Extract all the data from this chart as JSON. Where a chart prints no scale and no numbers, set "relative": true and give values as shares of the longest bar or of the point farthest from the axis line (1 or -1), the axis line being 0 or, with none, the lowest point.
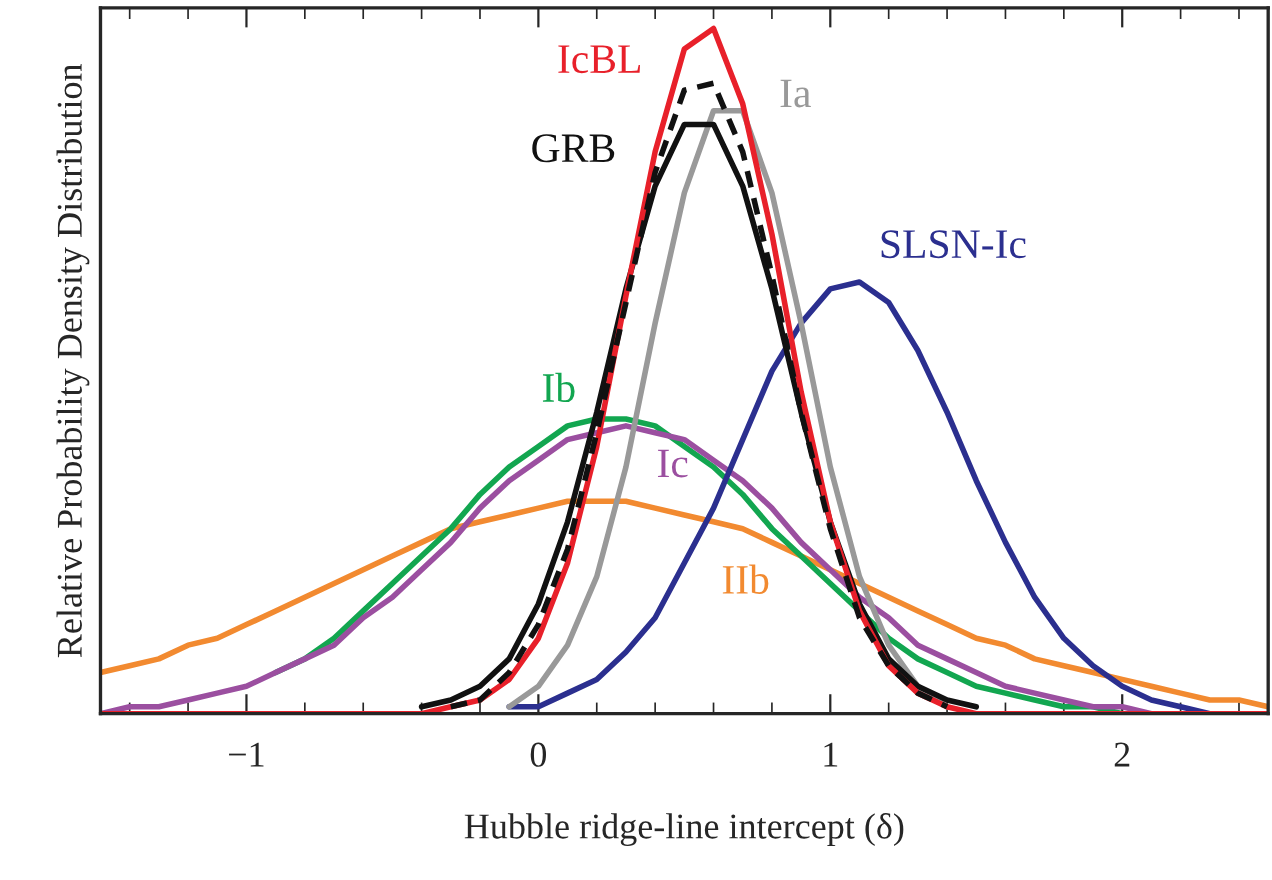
{
  "chart_data": {
    "type": "line",
    "relative": true,
    "xlabel": "Hubble ridge-line intercept (δ)",
    "ylabel": "Relative Probability Density Distribution",
    "xlim": [
      -1.5,
      2.5
    ],
    "xticks": [
      {
        "value": -1,
        "label": "−1"
      },
      0,
      1,
      2
    ],
    "grid": false,
    "legend": false,
    "marker": "none",
    "x": [
      -1.5,
      -1.4,
      -1.3,
      -1.2,
      -1.1,
      -1.0,
      -0.9,
      -0.8,
      -0.7,
      -0.6,
      -0.5,
      -0.4,
      -0.3,
      -0.2,
      -0.1,
      0.0,
      0.1,
      0.2,
      0.3,
      0.4,
      0.5,
      0.6,
      0.7,
      0.8,
      0.9,
      1.0,
      1.1,
      1.2,
      1.3,
      1.4,
      1.5,
      1.6,
      1.7,
      1.8,
      1.9,
      2.0,
      2.1,
      2.2,
      2.3,
      2.4,
      2.5
    ],
    "series": [
      {
        "name": "IIb",
        "color": "#f28a30",
        "line_style": "solid",
        "values": [
          0.06,
          0.07,
          0.08,
          0.1,
          0.11,
          0.13,
          0.15,
          0.17,
          0.19,
          0.21,
          0.23,
          0.25,
          0.27,
          0.28,
          0.29,
          0.3,
          0.31,
          0.31,
          0.31,
          0.3,
          0.29,
          0.28,
          0.27,
          0.25,
          0.23,
          0.21,
          0.19,
          0.17,
          0.15,
          0.13,
          0.11,
          0.1,
          0.08,
          0.07,
          0.06,
          0.05,
          0.04,
          0.03,
          0.02,
          0.02,
          0.01
        ]
      },
      {
        "name": "Ib",
        "color": "#12a650",
        "line_style": "solid",
        "values": [
          null,
          null,
          null,
          null,
          null,
          null,
          0.06,
          0.08,
          0.11,
          0.15,
          0.19,
          0.23,
          0.27,
          0.32,
          0.36,
          0.39,
          0.42,
          0.43,
          0.43,
          0.42,
          0.39,
          0.36,
          0.32,
          0.27,
          0.23,
          0.19,
          0.15,
          0.11,
          0.08,
          0.06,
          0.04,
          0.03,
          0.02,
          0.01,
          0.01,
          0,
          0,
          null,
          null,
          null,
          null
        ]
      },
      {
        "name": "Ic",
        "color": "#9b4fa0",
        "line_style": "solid",
        "values": [
          0,
          0.01,
          0.01,
          0.02,
          0.03,
          0.04,
          0.06,
          0.08,
          0.1,
          0.14,
          0.17,
          0.21,
          0.25,
          0.3,
          0.34,
          0.37,
          0.4,
          0.41,
          0.42,
          0.41,
          0.4,
          0.37,
          0.34,
          0.3,
          0.25,
          0.21,
          0.17,
          0.14,
          0.1,
          0.08,
          0.06,
          0.04,
          0.03,
          0.02,
          0.01,
          0.01,
          0,
          0,
          0,
          0,
          0
        ]
      },
      {
        "name": "SLSN-Ic",
        "color": "#2b2f8f",
        "line_style": "solid",
        "values": [
          null,
          null,
          null,
          null,
          null,
          null,
          null,
          null,
          null,
          null,
          null,
          null,
          null,
          null,
          0.01,
          0.01,
          0.03,
          0.05,
          0.09,
          0.14,
          0.22,
          0.3,
          0.4,
          0.5,
          0.57,
          0.62,
          0.63,
          0.6,
          0.53,
          0.44,
          0.34,
          0.25,
          0.17,
          0.11,
          0.07,
          0.04,
          0.02,
          0.01,
          0,
          null,
          null
        ]
      },
      {
        "name": "Ia",
        "color": "#999999",
        "line_style": "solid",
        "values": [
          null,
          null,
          null,
          null,
          null,
          null,
          null,
          null,
          null,
          null,
          null,
          null,
          null,
          null,
          0.01,
          0.04,
          0.1,
          0.2,
          0.36,
          0.57,
          0.76,
          0.88,
          0.88,
          0.76,
          0.57,
          0.36,
          0.2,
          0.1,
          0.04,
          0.01,
          null,
          null,
          null,
          null,
          null,
          null,
          null,
          null,
          null,
          null,
          null
        ]
      },
      {
        "name": "GRB",
        "color": "#111111",
        "line_style": "solid",
        "values": [
          null,
          null,
          null,
          null,
          null,
          null,
          null,
          null,
          null,
          null,
          null,
          0.01,
          0.02,
          0.04,
          0.08,
          0.16,
          0.28,
          0.44,
          0.62,
          0.77,
          0.86,
          0.86,
          0.77,
          0.62,
          0.44,
          0.28,
          0.16,
          0.08,
          0.04,
          0.02,
          0.01,
          null,
          null,
          null,
          null,
          null,
          null,
          null,
          null,
          null,
          null
        ]
      },
      {
        "name": "IcBL",
        "color": "#e8202a",
        "line_style": "solid",
        "values": [
          0,
          0,
          0,
          0,
          0,
          0,
          0,
          0,
          0,
          0,
          0,
          0,
          0.01,
          0.02,
          0.05,
          0.11,
          0.22,
          0.39,
          0.61,
          0.82,
          0.97,
          1.0,
          0.89,
          0.7,
          0.47,
          0.28,
          0.15,
          0.07,
          0.03,
          0.01,
          0,
          0,
          0,
          0,
          0,
          0,
          0,
          0,
          0,
          0,
          0
        ]
      },
      {
        "color": "#111111",
        "line_style": "dashed",
        "values": [
          null,
          null,
          null,
          null,
          null,
          null,
          null,
          null,
          null,
          null,
          null,
          null,
          0.01,
          0.02,
          0.06,
          0.13,
          0.24,
          0.41,
          0.6,
          0.79,
          0.91,
          0.92,
          0.82,
          0.64,
          0.44,
          0.27,
          0.14,
          0.07,
          0.03,
          0.01,
          null,
          null,
          null,
          null,
          null,
          null,
          null,
          null,
          null,
          null,
          null
        ]
      }
    ]
  }
}
